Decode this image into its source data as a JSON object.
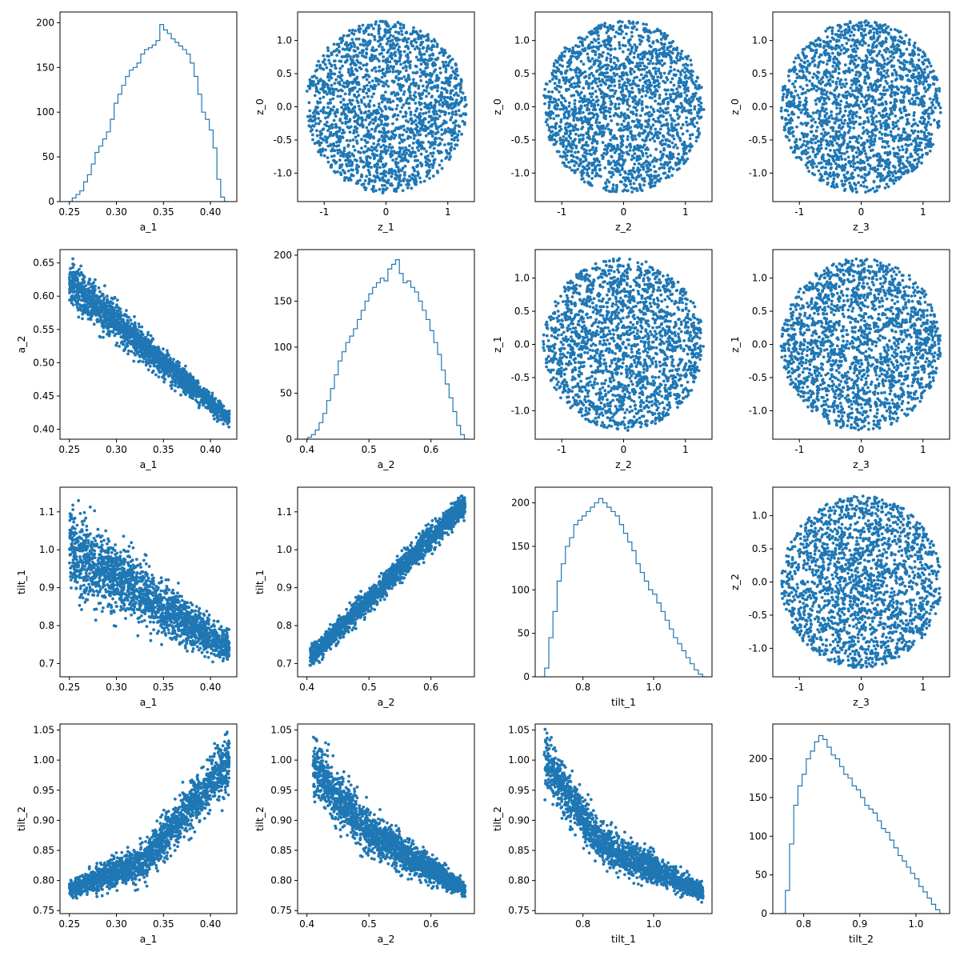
{
  "figure": {
    "rows": 4,
    "cols": 4,
    "plot_color": "#1f77b4",
    "background": "#ffffff"
  },
  "chart_data": [
    {
      "id": "r0c0",
      "type": "histogram",
      "row": 0,
      "col": 0,
      "xlabel": "a_1",
      "ylabel": "",
      "xlim": [
        0.24,
        0.428
      ],
      "ylim": [
        0,
        212
      ],
      "xticks": [
        "0.25",
        "0.30",
        "0.35",
        "0.40"
      ],
      "yticks": [
        "0",
        "50",
        "100",
        "150",
        "200"
      ],
      "bin_range": [
        0.249,
        0.419
      ],
      "counts": [
        0,
        4,
        8,
        12,
        22,
        30,
        42,
        55,
        62,
        70,
        78,
        92,
        110,
        120,
        130,
        140,
        147,
        150,
        155,
        165,
        170,
        172,
        175,
        180,
        198,
        192,
        188,
        182,
        178,
        174,
        170,
        165,
        155,
        140,
        120,
        100,
        92,
        80,
        60,
        25,
        5,
        0
      ]
    },
    {
      "id": "r0c1",
      "type": "scatter",
      "row": 0,
      "col": 1,
      "xlabel": "z_1",
      "ylabel": "z_0",
      "xlim": [
        -1.43,
        1.43
      ],
      "ylim": [
        -1.43,
        1.43
      ],
      "xticks": [
        "-1",
        "0",
        "1"
      ],
      "yticks": [
        "-1.0",
        "-0.5",
        "0.0",
        "0.5",
        "1.0"
      ],
      "shape": "disk",
      "center": [
        0,
        0
      ],
      "radius": 1.3
    },
    {
      "id": "r0c2",
      "type": "scatter",
      "row": 0,
      "col": 2,
      "xlabel": "z_2",
      "ylabel": "z_0",
      "xlim": [
        -1.43,
        1.43
      ],
      "ylim": [
        -1.43,
        1.43
      ],
      "xticks": [
        "-1",
        "0",
        "1"
      ],
      "yticks": [
        "-1.0",
        "-0.5",
        "0.0",
        "0.5",
        "1.0"
      ],
      "shape": "disk",
      "center": [
        0,
        0
      ],
      "radius": 1.3
    },
    {
      "id": "r0c3",
      "type": "scatter",
      "row": 0,
      "col": 3,
      "xlabel": "z_3",
      "ylabel": "z_0",
      "xlim": [
        -1.43,
        1.43
      ],
      "ylim": [
        -1.43,
        1.43
      ],
      "xticks": [
        "-1",
        "0",
        "1"
      ],
      "yticks": [
        "-1.0",
        "-0.5",
        "0.0",
        "0.5",
        "1.0"
      ],
      "shape": "disk",
      "center": [
        0,
        0
      ],
      "radius": 1.3
    },
    {
      "id": "r1c0",
      "type": "scatter",
      "row": 1,
      "col": 0,
      "xlabel": "a_1",
      "ylabel": "a_2",
      "xlim": [
        0.24,
        0.428
      ],
      "ylim": [
        0.385,
        0.67
      ],
      "xticks": [
        "0.25",
        "0.30",
        "0.35",
        "0.40"
      ],
      "yticks": [
        "0.40",
        "0.45",
        "0.50",
        "0.55",
        "0.60",
        "0.65"
      ],
      "shape": "band",
      "x_range": [
        0.25,
        0.42
      ],
      "center_line": [
        [
          0.25,
          0.62
        ],
        [
          0.42,
          0.415
        ]
      ],
      "half_width": [
        0.03,
        0.01
      ]
    },
    {
      "id": "r1c1",
      "type": "histogram",
      "row": 1,
      "col": 1,
      "xlabel": "a_2",
      "ylabel": "",
      "xlim": [
        0.385,
        0.67
      ],
      "ylim": [
        0,
        206
      ],
      "xticks": [
        "0.4",
        "0.5",
        "0.6"
      ],
      "yticks": [
        "0",
        "50",
        "100",
        "150",
        "200"
      ],
      "bin_range": [
        0.395,
        0.66
      ],
      "counts": [
        0,
        2,
        5,
        10,
        18,
        28,
        42,
        55,
        70,
        85,
        95,
        105,
        112,
        120,
        130,
        140,
        150,
        158,
        165,
        170,
        175,
        172,
        185,
        190,
        195,
        180,
        170,
        172,
        165,
        160,
        150,
        140,
        130,
        118,
        105,
        92,
        75,
        60,
        45,
        30,
        15,
        5,
        0
      ]
    },
    {
      "id": "r1c2",
      "type": "scatter",
      "row": 1,
      "col": 2,
      "xlabel": "z_2",
      "ylabel": "z_1",
      "xlim": [
        -1.43,
        1.43
      ],
      "ylim": [
        -1.43,
        1.43
      ],
      "xticks": [
        "-1",
        "0",
        "1"
      ],
      "yticks": [
        "-1.0",
        "-0.5",
        "0.0",
        "0.5",
        "1.0"
      ],
      "shape": "disk",
      "center": [
        0,
        0
      ],
      "radius": 1.3
    },
    {
      "id": "r1c3",
      "type": "scatter",
      "row": 1,
      "col": 3,
      "xlabel": "z_3",
      "ylabel": "z_1",
      "xlim": [
        -1.43,
        1.43
      ],
      "ylim": [
        -1.43,
        1.43
      ],
      "xticks": [
        "-1",
        "0",
        "1"
      ],
      "yticks": [
        "-1.0",
        "-0.5",
        "0.0",
        "0.5",
        "1.0"
      ],
      "shape": "disk",
      "center": [
        0,
        0
      ],
      "radius": 1.3
    },
    {
      "id": "r2c0",
      "type": "scatter",
      "row": 2,
      "col": 0,
      "xlabel": "a_1",
      "ylabel": "tilt_1",
      "xlim": [
        0.24,
        0.428
      ],
      "ylim": [
        0.665,
        1.165
      ],
      "xticks": [
        "0.25",
        "0.30",
        "0.35",
        "0.40"
      ],
      "yticks": [
        "0.7",
        "0.8",
        "0.9",
        "1.0",
        "1.1"
      ],
      "shape": "band",
      "x_range": [
        0.25,
        0.42
      ],
      "center_line": [
        [
          0.25,
          1.0
        ],
        [
          0.42,
          0.74
        ]
      ],
      "half_width": [
        0.1,
        0.035
      ]
    },
    {
      "id": "r2c1",
      "type": "scatter",
      "row": 2,
      "col": 1,
      "xlabel": "a_2",
      "ylabel": "tilt_1",
      "xlim": [
        0.385,
        0.67
      ],
      "ylim": [
        0.665,
        1.165
      ],
      "xticks": [
        "0.4",
        "0.5",
        "0.6"
      ],
      "yticks": [
        "0.7",
        "0.8",
        "0.9",
        "1.0",
        "1.1"
      ],
      "shape": "band",
      "x_range": [
        0.405,
        0.655
      ],
      "center_line": [
        [
          0.405,
          0.715
        ],
        [
          0.655,
          1.12
        ]
      ],
      "half_width": [
        0.025,
        0.03
      ]
    },
    {
      "id": "r2c2",
      "type": "histogram",
      "row": 2,
      "col": 2,
      "xlabel": "tilt_1",
      "ylabel": "",
      "xlim": [
        0.665,
        1.165
      ],
      "ylim": [
        0,
        218
      ],
      "xticks": [
        "0.8",
        "1.0"
      ],
      "yticks": [
        "0",
        "50",
        "100",
        "150",
        "200"
      ],
      "bin_range": [
        0.68,
        1.15
      ],
      "counts": [
        0,
        10,
        45,
        75,
        110,
        130,
        150,
        160,
        175,
        180,
        185,
        190,
        195,
        200,
        205,
        200,
        195,
        190,
        185,
        175,
        165,
        155,
        145,
        130,
        120,
        110,
        100,
        95,
        85,
        75,
        65,
        55,
        45,
        38,
        30,
        22,
        15,
        8,
        3,
        0
      ]
    },
    {
      "id": "r2c3",
      "type": "scatter",
      "row": 2,
      "col": 3,
      "xlabel": "z_3",
      "ylabel": "z_2",
      "xlim": [
        -1.43,
        1.43
      ],
      "ylim": [
        -1.43,
        1.43
      ],
      "xticks": [
        "-1",
        "0",
        "1"
      ],
      "yticks": [
        "-1.0",
        "-0.5",
        "0.0",
        "0.5",
        "1.0"
      ],
      "shape": "disk",
      "center": [
        0,
        0
      ],
      "radius": 1.3
    },
    {
      "id": "r3c0",
      "type": "scatter",
      "row": 3,
      "col": 0,
      "xlabel": "a_1",
      "ylabel": "tilt_2",
      "xlim": [
        0.24,
        0.428
      ],
      "ylim": [
        0.745,
        1.06
      ],
      "xticks": [
        "0.25",
        "0.30",
        "0.35",
        "0.40"
      ],
      "yticks": [
        "0.75",
        "0.80",
        "0.85",
        "0.90",
        "0.95",
        "1.00",
        "1.05"
      ],
      "shape": "band",
      "x_range": [
        0.25,
        0.42
      ],
      "center_line": [
        [
          0.25,
          0.785
        ],
        [
          0.33,
          0.83
        ],
        [
          0.42,
          1.0
        ]
      ],
      "half_width": [
        0.012,
        0.045
      ]
    },
    {
      "id": "r3c1",
      "type": "scatter",
      "row": 3,
      "col": 1,
      "xlabel": "a_2",
      "ylabel": "tilt_2",
      "xlim": [
        0.385,
        0.67
      ],
      "ylim": [
        0.745,
        1.06
      ],
      "xticks": [
        "0.4",
        "0.5",
        "0.6"
      ],
      "yticks": [
        "0.75",
        "0.80",
        "0.85",
        "0.90",
        "0.95",
        "1.00",
        "1.05"
      ],
      "shape": "band",
      "x_range": [
        0.41,
        0.655
      ],
      "center_line": [
        [
          0.41,
          0.99
        ],
        [
          0.5,
          0.88
        ],
        [
          0.655,
          0.785
        ]
      ],
      "half_width": [
        0.045,
        0.012
      ]
    },
    {
      "id": "r3c2",
      "type": "scatter",
      "row": 3,
      "col": 2,
      "xlabel": "tilt_1",
      "ylabel": "tilt_2",
      "xlim": [
        0.665,
        1.165
      ],
      "ylim": [
        0.745,
        1.06
      ],
      "xticks": [
        "0.8",
        "1.0"
      ],
      "yticks": [
        "0.75",
        "0.80",
        "0.85",
        "0.90",
        "0.95",
        "1.00",
        "1.05"
      ],
      "shape": "band",
      "x_range": [
        0.69,
        1.14
      ],
      "center_line": [
        [
          0.69,
          1.0
        ],
        [
          0.85,
          0.86
        ],
        [
          1.14,
          0.78
        ]
      ],
      "half_width": [
        0.04,
        0.012
      ]
    },
    {
      "id": "r3c3",
      "type": "histogram",
      "row": 3,
      "col": 3,
      "xlabel": "tilt_2",
      "ylabel": "",
      "xlim": [
        0.745,
        1.06
      ],
      "ylim": [
        0,
        245
      ],
      "xticks": [
        "0.8",
        "0.9",
        "1.0"
      ],
      "yticks": [
        "0",
        "50",
        "100",
        "150",
        "200"
      ],
      "bin_range": [
        0.76,
        1.05
      ],
      "counts": [
        0,
        30,
        90,
        140,
        165,
        180,
        200,
        210,
        222,
        230,
        225,
        215,
        205,
        200,
        190,
        180,
        175,
        165,
        160,
        150,
        140,
        135,
        130,
        120,
        110,
        105,
        95,
        85,
        75,
        68,
        60,
        52,
        45,
        35,
        28,
        20,
        12,
        5,
        0
      ]
    }
  ]
}
